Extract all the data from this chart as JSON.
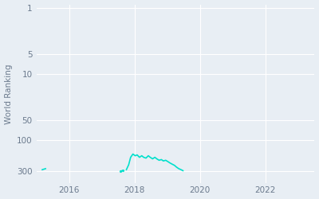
{
  "ylabel": "World Ranking",
  "line_color": "#00e0cc",
  "background_color": "#e8eef4",
  "grid_color": "#ffffff",
  "yticks": [
    1,
    5,
    10,
    50,
    100,
    300
  ],
  "ytick_labels": [
    "1",
    "5",
    "10",
    "50",
    "100",
    "300"
  ],
  "xlim": [
    2015.0,
    2023.5
  ],
  "ylim_log": [
    0.9,
    450
  ],
  "xticks": [
    2016,
    2018,
    2020,
    2022
  ],
  "series1": {
    "dates": [
      2015.18,
      2015.28
    ],
    "values": [
      285,
      275
    ]
  },
  "series2": {
    "dates": [
      2017.58,
      2017.63
    ],
    "values": [
      298,
      295
    ]
  },
  "series3": {
    "dates": [
      2017.75,
      2017.82,
      2017.88,
      2017.95,
      2018.02,
      2018.08,
      2018.15,
      2018.22,
      2018.28,
      2018.35,
      2018.42,
      2018.48,
      2018.55,
      2018.62,
      2018.68,
      2018.75,
      2018.82,
      2018.88,
      2018.95,
      2019.02,
      2019.08,
      2019.15,
      2019.22,
      2019.28,
      2019.35,
      2019.42,
      2019.48
    ],
    "values": [
      285,
      240,
      185,
      165,
      175,
      170,
      185,
      175,
      185,
      190,
      175,
      185,
      195,
      185,
      195,
      205,
      200,
      210,
      205,
      215,
      225,
      235,
      245,
      260,
      275,
      285,
      295
    ]
  }
}
